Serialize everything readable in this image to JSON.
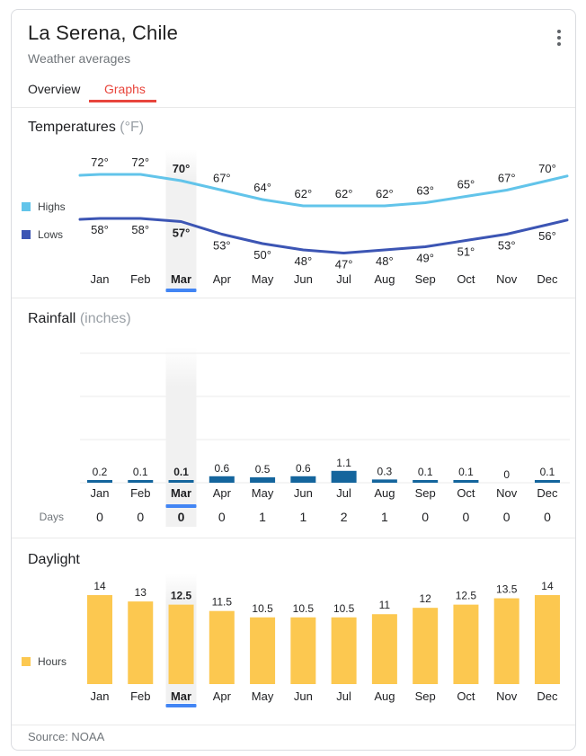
{
  "header": {
    "title": "La Serena, Chile",
    "subtitle": "Weather averages"
  },
  "tabs": [
    {
      "label": "Overview",
      "active": false
    },
    {
      "label": "Graphs",
      "active": true
    }
  ],
  "months": [
    "Jan",
    "Feb",
    "Mar",
    "Apr",
    "May",
    "Jun",
    "Jul",
    "Aug",
    "Sep",
    "Oct",
    "Nov",
    "Dec"
  ],
  "selected_month": "Mar",
  "selected_month_index": 2,
  "colors": {
    "accent_blue": "#4285f4",
    "tab_red": "#e8453c",
    "highlight_band": "#f1f1f1",
    "gridline": "#ebebeb",
    "highs_line": "#62c4ea",
    "lows_line": "#3c55b4",
    "rain_bar": "#14659d",
    "daylight_bar": "#fcc850"
  },
  "chart_data": [
    {
      "id": "temperatures",
      "type": "line",
      "title": "Temperatures",
      "unit_label": "(°F)",
      "categories": [
        "Jan",
        "Feb",
        "Mar",
        "Apr",
        "May",
        "Jun",
        "Jul",
        "Aug",
        "Sep",
        "Oct",
        "Nov",
        "Dec"
      ],
      "highlighted_category": "Mar",
      "ylim": [
        44,
        76
      ],
      "grid": false,
      "legend_position": "left",
      "series": [
        {
          "name": "Highs",
          "values": [
            72,
            72,
            70,
            67,
            64,
            62,
            62,
            62,
            63,
            65,
            67,
            70
          ],
          "labels": [
            "72°",
            "72°",
            "70°",
            "67°",
            "64°",
            "62°",
            "62°",
            "62°",
            "63°",
            "65°",
            "67°",
            "70°"
          ],
          "color": "#62c4ea"
        },
        {
          "name": "Lows",
          "values": [
            58,
            58,
            57,
            53,
            50,
            48,
            47,
            48,
            49,
            51,
            53,
            56
          ],
          "labels": [
            "58°",
            "58°",
            "57°",
            "53°",
            "50°",
            "48°",
            "47°",
            "48°",
            "49°",
            "51°",
            "53°",
            "56°"
          ],
          "color": "#3c55b4"
        }
      ]
    },
    {
      "id": "rainfall",
      "type": "bar",
      "title": "Rainfall",
      "unit_label": "(inches)",
      "categories": [
        "Jan",
        "Feb",
        "Mar",
        "Apr",
        "May",
        "Jun",
        "Jul",
        "Aug",
        "Sep",
        "Oct",
        "Nov",
        "Dec"
      ],
      "highlighted_category": "Mar",
      "grid": true,
      "values": [
        0.2,
        0.1,
        0.1,
        0.6,
        0.5,
        0.6,
        1.1,
        0.3,
        0.1,
        0.1,
        0,
        0.1
      ],
      "labels": [
        "0.2",
        "0.1",
        "0.1",
        "0.6",
        "0.5",
        "0.6",
        "1.1",
        "0.3",
        "0.1",
        "0.1",
        "0",
        "0.1"
      ],
      "color": "#14659d",
      "days_row": {
        "label": "Days",
        "values": [
          0,
          0,
          0,
          0,
          1,
          1,
          2,
          1,
          0,
          0,
          0,
          0
        ]
      }
    },
    {
      "id": "daylight",
      "type": "bar",
      "title": "Daylight",
      "unit_label": "",
      "categories": [
        "Jan",
        "Feb",
        "Mar",
        "Apr",
        "May",
        "Jun",
        "Jul",
        "Aug",
        "Sep",
        "Oct",
        "Nov",
        "Dec"
      ],
      "highlighted_category": "Mar",
      "grid": false,
      "legend": "Hours",
      "legend_position": "left",
      "values": [
        14,
        13,
        12.5,
        11.5,
        10.5,
        10.5,
        10.5,
        11,
        12,
        12.5,
        13.5,
        14
      ],
      "labels": [
        "14",
        "13",
        "12.5",
        "11.5",
        "10.5",
        "10.5",
        "10.5",
        "11",
        "12",
        "12.5",
        "13.5",
        "14"
      ],
      "color": "#fcc850"
    }
  ],
  "footer": {
    "source": "Source: NOAA"
  }
}
